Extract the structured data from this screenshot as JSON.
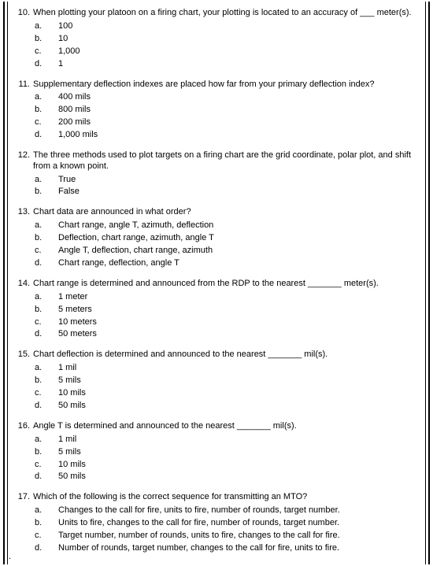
{
  "questions": [
    {
      "number": "10.",
      "text": "When plotting your platoon on a firing chart, your plotting is located to an accuracy of ___ meter(s).",
      "options": [
        {
          "letter": "a.",
          "text": "100"
        },
        {
          "letter": "b.",
          "text": "10"
        },
        {
          "letter": "c.",
          "text": "1,000"
        },
        {
          "letter": "d.",
          "text": "1"
        }
      ]
    },
    {
      "number": "11.",
      "text": "Supplementary deflection indexes are placed how far from your primary deflection index?",
      "options": [
        {
          "letter": "a.",
          "text": "400 mils"
        },
        {
          "letter": "b.",
          "text": "800 mils"
        },
        {
          "letter": "c.",
          "text": "200 mils"
        },
        {
          "letter": "d.",
          "text": "1,000 mils"
        }
      ]
    },
    {
      "number": "12.",
      "text": "The three methods used to plot targets on a firing chart are the grid coordinate, polar plot, and shift from a known point.",
      "options": [
        {
          "letter": "a.",
          "text": "True"
        },
        {
          "letter": "b.",
          "text": "False"
        }
      ]
    },
    {
      "number": "13.",
      "text": "Chart data are announced in what order?",
      "options": [
        {
          "letter": "a.",
          "text": "Chart range, angle T, azimuth, deflection"
        },
        {
          "letter": "b.",
          "text": "Deflection, chart range, azimuth, angle T"
        },
        {
          "letter": "c.",
          "text": "Angle T, deflection, chart range, azimuth"
        },
        {
          "letter": "d.",
          "text": "Chart range, deflection, angle T"
        }
      ]
    },
    {
      "number": "14.",
      "text": "Chart range is determined and announced from the RDP to the nearest _______ meter(s).",
      "options": [
        {
          "letter": "a.",
          "text": "1 meter"
        },
        {
          "letter": "b.",
          "text": "5 meters"
        },
        {
          "letter": "c.",
          "text": "10 meters"
        },
        {
          "letter": "d.",
          "text": "50 meters"
        }
      ]
    },
    {
      "number": "15.",
      "text": "Chart deflection is determined and announced to the nearest _______ mil(s).",
      "options": [
        {
          "letter": "a.",
          "text": "1 mil"
        },
        {
          "letter": "b.",
          "text": "5 mils"
        },
        {
          "letter": "c.",
          "text": "10 mils"
        },
        {
          "letter": "d.",
          "text": "50 mils"
        }
      ]
    },
    {
      "number": "16.",
      "text": "Angle T is determined and announced to the nearest _______ mil(s).",
      "options": [
        {
          "letter": "a.",
          "text": "1 mil"
        },
        {
          "letter": "b.",
          "text": "5 mils"
        },
        {
          "letter": "c.",
          "text": "10 mils"
        },
        {
          "letter": "d.",
          "text": "50 mils"
        }
      ]
    },
    {
      "number": "17.",
      "text": "Which of the following is the correct sequence for transmitting an MTO?",
      "options": [
        {
          "letter": "a.",
          "text": "Changes to the call for fire, units to fire, number of rounds, target number."
        },
        {
          "letter": "b.",
          "text": "Units to fire, changes to the call for fire, number of rounds, target number."
        },
        {
          "letter": "c.",
          "text": "Target number, number of rounds, units to fire, changes to the call for fire."
        },
        {
          "letter": "d.",
          "text": "Number of rounds, target number, changes to the call for fire, units to fire."
        }
      ]
    }
  ],
  "bottom_mark": "."
}
